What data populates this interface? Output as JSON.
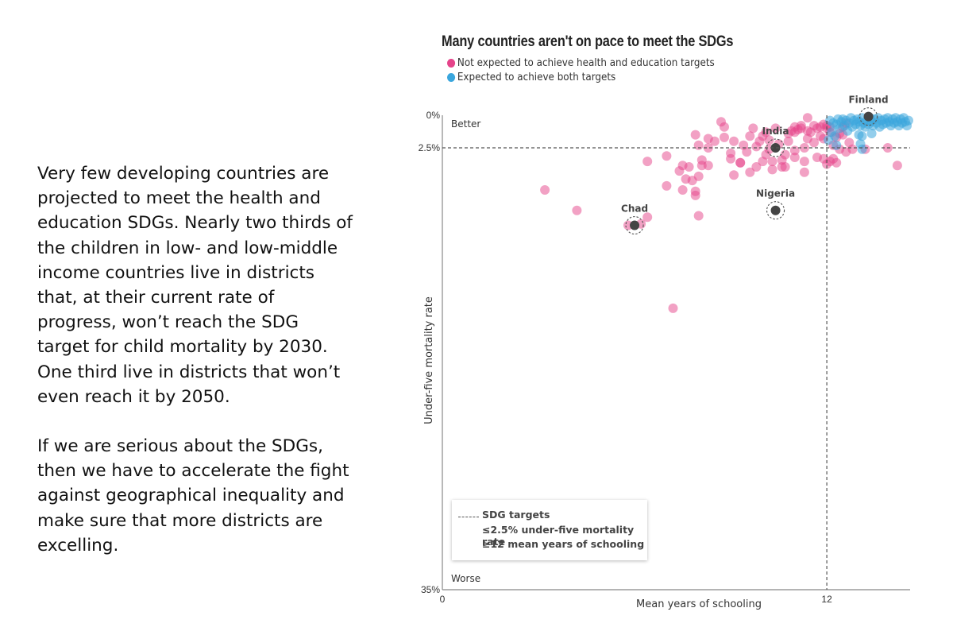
{
  "text": {
    "paragraph1": "Very few developing countries are projected to meet the health and education SDGs. Nearly two thirds of the children in low- and low-middle income countries live in districts that, at their current rate of progress, won’t reach the SDG target for child mortality by 2030. One third live in districts that won’t even reach it by 2050.",
    "paragraph2": "If we are serious about the SDGs, then we have to accelerate the fight against geographical inequality and make sure that more districts are excelling."
  },
  "colors": {
    "not_expected": "#e5448a",
    "expected": "#3aa6dd",
    "highlight": "#444444",
    "axis": "#888888"
  },
  "chart_data": {
    "type": "scatter",
    "title": "Many countries aren't on pace to meet the SDGs",
    "legend": [
      {
        "label": "Not expected to achieve health and education targets",
        "color": "#e5448a"
      },
      {
        "label": "Expected to achieve both targets",
        "color": "#3aa6dd"
      }
    ],
    "xlabel": "Mean years of schooling",
    "ylabel": "Under-five mortality rate",
    "x_ticks": [
      "0",
      "12"
    ],
    "y_ticks": [
      "0%",
      "2.5%",
      "35%"
    ],
    "xlim": [
      0,
      14.6
    ],
    "ylim": [
      0,
      35
    ],
    "y_inverted": true,
    "better_label": "Better",
    "worse_label": "Worse",
    "thresholds": {
      "x": 12,
      "y": 2.5
    },
    "note": {
      "title": "SDG targets",
      "items": [
        "≤2.5% under-five mortality rate",
        "≥12 mean years of schooling"
      ]
    },
    "highlights": [
      {
        "name": "Finland",
        "x": 13.3,
        "y": 0.1
      },
      {
        "name": "India",
        "x": 10.4,
        "y": 2.5
      },
      {
        "name": "Nigeria",
        "x": 10.4,
        "y": 7.1
      },
      {
        "name": "Chad",
        "x": 6.0,
        "y": 8.2
      }
    ],
    "series": [
      {
        "name": "Not expected to achieve health and education targets",
        "points": [
          [
            3.2,
            5.6
          ],
          [
            4.2,
            7.1
          ],
          [
            6.4,
            7.6
          ],
          [
            6.2,
            8.1
          ],
          [
            5.8,
            8.2
          ],
          [
            6.4,
            3.5
          ],
          [
            7.0,
            3.1
          ],
          [
            7.0,
            5.3
          ],
          [
            7.4,
            4.2
          ],
          [
            7.5,
            5.6
          ],
          [
            7.6,
            4.8
          ],
          [
            7.8,
            4.9
          ],
          [
            7.9,
            5.7
          ],
          [
            7.7,
            3.9
          ],
          [
            7.9,
            6.0
          ],
          [
            8.0,
            4.6
          ],
          [
            8.0,
            7.5
          ],
          [
            7.9,
            1.5
          ],
          [
            8.1,
            3.8
          ],
          [
            8.3,
            3.8
          ],
          [
            8.3,
            2.5
          ],
          [
            8.5,
            2.0
          ],
          [
            8.8,
            0.9
          ],
          [
            8.7,
            0.5
          ],
          [
            8.8,
            1.7
          ],
          [
            9.0,
            2.9
          ],
          [
            9.0,
            3.3
          ],
          [
            9.1,
            4.5
          ],
          [
            9.3,
            3.6
          ],
          [
            9.4,
            2.3
          ],
          [
            9.6,
            4.3
          ],
          [
            9.6,
            1.6
          ],
          [
            9.5,
            2.8
          ],
          [
            9.7,
            1.0
          ],
          [
            9.8,
            2.4
          ],
          [
            9.8,
            3.9
          ],
          [
            9.9,
            2.0
          ],
          [
            10.0,
            3.5
          ],
          [
            10.0,
            1.6
          ],
          [
            10.1,
            1.3
          ],
          [
            10.2,
            1.9
          ],
          [
            10.2,
            2.6
          ],
          [
            10.3,
            3.5
          ],
          [
            10.3,
            4.1
          ],
          [
            10.4,
            1.0
          ],
          [
            10.5,
            2.2
          ],
          [
            10.6,
            3.9
          ],
          [
            10.7,
            3.9
          ],
          [
            10.7,
            3.0
          ],
          [
            10.8,
            2.0
          ],
          [
            10.8,
            1.4
          ],
          [
            10.9,
            1.2
          ],
          [
            11.0,
            3.2
          ],
          [
            11.0,
            2.7
          ],
          [
            11.0,
            1.3
          ],
          [
            11.0,
            0.9
          ],
          [
            11.1,
            1.1
          ],
          [
            11.2,
            1.0
          ],
          [
            11.2,
            0.8
          ],
          [
            11.3,
            4.3
          ],
          [
            11.3,
            3.5
          ],
          [
            11.3,
            2.5
          ],
          [
            11.4,
            1.8
          ],
          [
            11.4,
            1.2
          ],
          [
            11.4,
            0.2
          ],
          [
            11.5,
            1.3
          ],
          [
            11.6,
            0.8
          ],
          [
            11.6,
            2.1
          ],
          [
            11.7,
            1.0
          ],
          [
            11.7,
            3.2
          ],
          [
            11.8,
            1.6
          ],
          [
            11.8,
            0.9
          ],
          [
            11.9,
            1.8
          ],
          [
            11.9,
            0.7
          ],
          [
            12.0,
            1.0
          ],
          [
            12.0,
            0.8
          ],
          [
            11.9,
            3.3
          ],
          [
            12.0,
            3.7
          ],
          [
            12.1,
            3.5
          ],
          [
            12.1,
            1.3
          ],
          [
            12.1,
            0.9
          ],
          [
            12.2,
            2.3
          ],
          [
            12.2,
            3.3
          ],
          [
            12.3,
            3.6
          ],
          [
            12.4,
            2.6
          ],
          [
            12.4,
            1.4
          ],
          [
            12.5,
            0.9
          ],
          [
            12.6,
            0.6
          ],
          [
            12.6,
            2.8
          ],
          [
            12.7,
            2.1
          ],
          [
            12.8,
            2.6
          ],
          [
            13.2,
            2.6
          ],
          [
            13.9,
            2.5
          ],
          [
            14.2,
            3.8
          ],
          [
            12.3,
            1.7
          ],
          [
            12.5,
            1.5
          ],
          [
            9.1,
            2.0
          ],
          [
            8.3,
            1.8
          ],
          [
            9.3,
            3.6
          ],
          [
            10.6,
            3.4
          ],
          [
            7.2,
            14.3
          ],
          [
            8.0,
            2.3
          ],
          [
            8.1,
            3.4
          ],
          [
            7.5,
            3.8
          ],
          [
            10.1,
            3.0
          ]
        ]
      },
      {
        "name": "Expected to achieve both targets",
        "points": [
          [
            12.1,
            0.4
          ],
          [
            12.2,
            0.6
          ],
          [
            12.3,
            0.7
          ],
          [
            12.35,
            0.3
          ],
          [
            12.4,
            1.0
          ],
          [
            12.45,
            0.5
          ],
          [
            12.5,
            0.3
          ],
          [
            12.55,
            0.8
          ],
          [
            12.6,
            0.4
          ],
          [
            12.65,
            1.2
          ],
          [
            12.7,
            0.6
          ],
          [
            12.75,
            0.2
          ],
          [
            12.8,
            0.9
          ],
          [
            12.85,
            0.4
          ],
          [
            12.9,
            0.7
          ],
          [
            12.95,
            0.3
          ],
          [
            13.0,
            1.5
          ],
          [
            13.0,
            0.5
          ],
          [
            13.05,
            0.8
          ],
          [
            13.1,
            0.2
          ],
          [
            13.15,
            0.6
          ],
          [
            13.2,
            0.9
          ],
          [
            13.25,
            0.4
          ],
          [
            13.3,
            0.7
          ],
          [
            13.35,
            0.2
          ],
          [
            13.4,
            1.4
          ],
          [
            13.4,
            0.5
          ],
          [
            13.45,
            0.8
          ],
          [
            13.5,
            0.3
          ],
          [
            13.55,
            0.6
          ],
          [
            13.6,
            0.2
          ],
          [
            13.65,
            0.9
          ],
          [
            13.7,
            0.4
          ],
          [
            13.75,
            0.7
          ],
          [
            13.8,
            0.3
          ],
          [
            13.85,
            0.6
          ],
          [
            13.9,
            0.2
          ],
          [
            13.95,
            0.5
          ],
          [
            14.0,
            0.8
          ],
          [
            14.05,
            0.3
          ],
          [
            14.1,
            0.6
          ],
          [
            14.15,
            0.2
          ],
          [
            14.2,
            0.5
          ],
          [
            14.25,
            0.8
          ],
          [
            14.3,
            0.3
          ],
          [
            14.35,
            0.6
          ],
          [
            14.4,
            0.2
          ],
          [
            14.45,
            0.5
          ],
          [
            14.5,
            0.8
          ],
          [
            14.55,
            0.4
          ],
          [
            12.15,
            1.3
          ],
          [
            12.25,
            1.6
          ],
          [
            13.1,
            1.6
          ],
          [
            13.05,
            2.2
          ],
          [
            13.1,
            2.6
          ],
          [
            12.3,
            2.3
          ],
          [
            12.05,
            1.9
          ]
        ]
      }
    ]
  }
}
